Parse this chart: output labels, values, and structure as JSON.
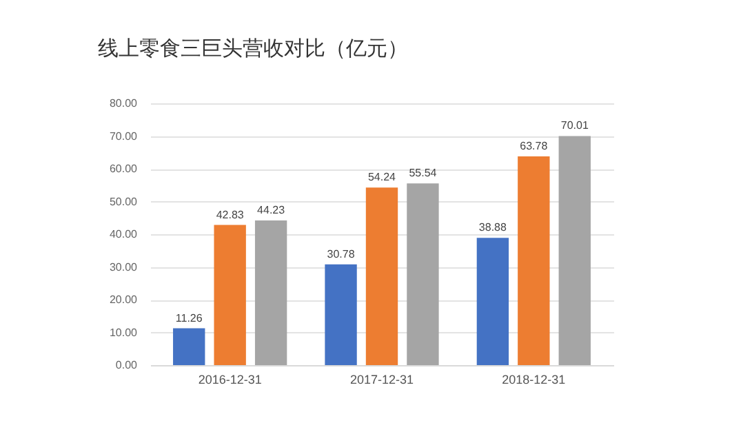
{
  "chart_data": {
    "type": "bar",
    "title": "线上零食三巨头营收对比（亿元）",
    "categories": [
      "2016-12-31",
      "2017-12-31",
      "2018-12-31"
    ],
    "series": [
      {
        "color": "#4472c4",
        "values": [
          11.26,
          30.78,
          38.88
        ]
      },
      {
        "color": "#ed7d31",
        "values": [
          42.83,
          54.24,
          63.78
        ]
      },
      {
        "color": "#a5a5a5",
        "values": [
          44.23,
          55.54,
          70.01
        ]
      }
    ],
    "ylim": [
      0,
      80
    ],
    "yticks": [
      {
        "value": 0,
        "label": "0.00"
      },
      {
        "value": 10,
        "label": "10.00"
      },
      {
        "value": 20,
        "label": "20.00"
      },
      {
        "value": 30,
        "label": "30.00"
      },
      {
        "value": 40,
        "label": "40.00"
      },
      {
        "value": 50,
        "label": "50.00"
      },
      {
        "value": 60,
        "label": "60.00"
      },
      {
        "value": 70,
        "label": "70.00"
      },
      {
        "value": 80,
        "label": "80.00"
      }
    ],
    "grid": "y",
    "data_labels": true
  }
}
